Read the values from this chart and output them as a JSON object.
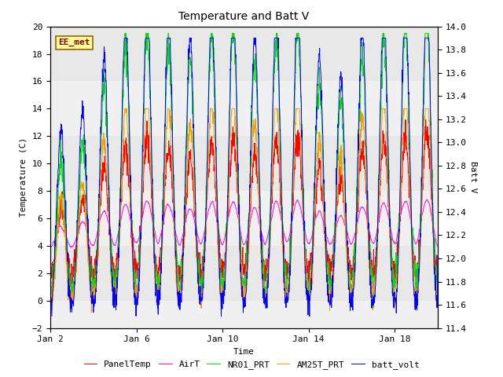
{
  "title": "Temperature and Batt V",
  "xlabel": "Time",
  "ylabel_left": "Temperature (C)",
  "ylabel_right": "Batt V",
  "ylim_left": [
    -2,
    20
  ],
  "ylim_right": [
    11.4,
    14.0
  ],
  "yticks_left": [
    -2,
    0,
    2,
    4,
    6,
    8,
    10,
    12,
    14,
    16,
    18,
    20
  ],
  "yticks_right": [
    11.4,
    11.6,
    11.8,
    12.0,
    12.2,
    12.4,
    12.6,
    12.8,
    13.0,
    13.2,
    13.4,
    13.6,
    13.8,
    14.0
  ],
  "xtick_labels": [
    "Jan 2",
    "Jan 6",
    "Jan 10",
    "Jan 14",
    "Jan 18"
  ],
  "xtick_positions": [
    0,
    4,
    8,
    12,
    16
  ],
  "xlim": [
    0,
    18
  ],
  "label_box_text": "EE_met",
  "label_box_color": "#ffff99",
  "label_box_edge": "#996600",
  "label_text_color": "#800000",
  "series_colors": {
    "PanelTemp": "#ff0000",
    "AirT": "#ff00ff",
    "NR01_PRT": "#00dd00",
    "AM25T_PRT": "#ff9900",
    "batt_volt": "#0000ff"
  },
  "background_bands": [
    {
      "ymin": 16,
      "ymax": 20,
      "color": "#e8e8e8"
    },
    {
      "ymin": 12,
      "ymax": 16,
      "color": "#f0f0f0"
    },
    {
      "ymin": 8,
      "ymax": 12,
      "color": "#e8e8e8"
    },
    {
      "ymin": 4,
      "ymax": 8,
      "color": "#f0f0f0"
    },
    {
      "ymin": 0,
      "ymax": 4,
      "color": "#e8e8e8"
    },
    {
      "ymin": -2,
      "ymax": 0,
      "color": "#f0f0f0"
    }
  ],
  "peak_scales": [
    0.7,
    0.8,
    1.1,
    1.3,
    1.4,
    1.3,
    1.2,
    1.35,
    1.4,
    1.2,
    1.35,
    1.4,
    1.1,
    1.0,
    1.25,
    1.35,
    1.4,
    1.45
  ],
  "n_points": 1800,
  "linewidth": 0.7,
  "font_family": "monospace"
}
